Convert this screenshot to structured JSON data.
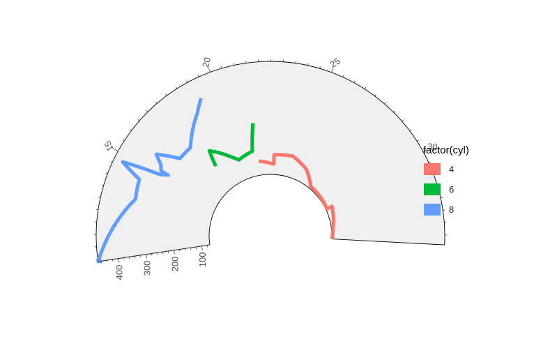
{
  "chart_data": {
    "type": "line",
    "coord": "polar-partial",
    "x_axis": {
      "variable": "mpg",
      "range": [
        10.4,
        33.9
      ],
      "ticks": [
        15,
        20,
        25,
        30
      ],
      "direction": "clockwise"
    },
    "y_axis": {
      "variable": "disp",
      "range": [
        71.1,
        472
      ],
      "ticks": [
        100,
        200,
        300,
        400
      ]
    },
    "legend": {
      "title": "factor(cyl)",
      "position": "right"
    },
    "series": [
      {
        "name": "4",
        "color": "#F8766D",
        "points": [
          [
            21.4,
            121.0
          ],
          [
            21.5,
            120.1
          ],
          [
            22.8,
            108.0
          ],
          [
            22.8,
            140.8
          ],
          [
            24.4,
            146.7
          ],
          [
            26.0,
            120.3
          ],
          [
            27.3,
            79.0
          ],
          [
            30.4,
            75.7
          ],
          [
            30.4,
            95.1
          ],
          [
            32.4,
            78.7
          ],
          [
            33.9,
            71.1
          ]
        ]
      },
      {
        "name": "6",
        "color": "#00BA38",
        "points": [
          [
            17.8,
            167.6
          ],
          [
            18.1,
            225.0
          ],
          [
            19.2,
            167.6
          ],
          [
            19.7,
            145.0
          ],
          [
            21.0,
            160.0
          ],
          [
            21.0,
            160.0
          ],
          [
            21.4,
            258.0
          ]
        ]
      },
      {
        "name": "8",
        "color": "#619CFF",
        "points": [
          [
            10.4,
            472.0
          ],
          [
            10.4,
            460.0
          ],
          [
            13.3,
            350.0
          ],
          [
            14.3,
            360.0
          ],
          [
            14.7,
            440.0
          ],
          [
            15.0,
            301.0
          ],
          [
            15.2,
            275.8
          ],
          [
            15.2,
            304.0
          ],
          [
            15.5,
            318.0
          ],
          [
            15.8,
            351.0
          ],
          [
            16.4,
            275.8
          ],
          [
            17.3,
            275.8
          ],
          [
            18.7,
            360.0
          ],
          [
            19.2,
            400.0
          ]
        ]
      }
    ]
  }
}
